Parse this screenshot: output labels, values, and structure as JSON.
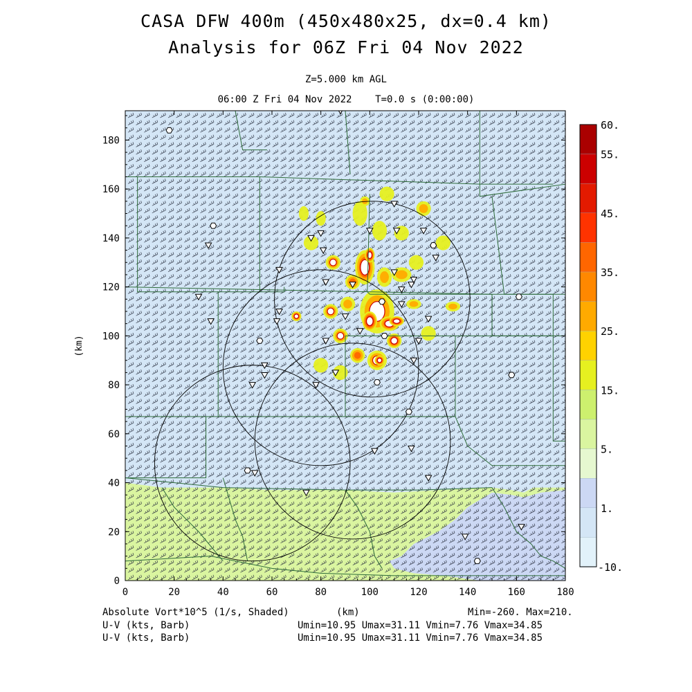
{
  "header": {
    "title_line1": "CASA DFW 400m (450x480x25, dx=0.4 km)",
    "title_line2": "Analysis for 06Z Fri 04 Nov 2022",
    "level": "Z=5.000 km AGL",
    "time": "06:00 Z Fri 04 Nov 2022    T=0.0 s (0:00:00)"
  },
  "footer": {
    "field": "Absolute Vort*10^5 (1/s, Shaded)",
    "unit": "(km)",
    "minmax": "Min=-260. Max=210.",
    "wind1": "U-V (kts, Barb)",
    "wind2": "U-V (kts, Barb)",
    "wind_stats1": "Umin=10.95 Umax=31.11 Vmin=7.76 Vmax=34.85",
    "wind_stats2": "Umin=10.95 Umax=31.11 Vmin=7.76 Vmax=34.85"
  },
  "chart_data": {
    "type": "heatmap",
    "xlabel": "",
    "ylabel": "(km)",
    "xlim": [
      0,
      180
    ],
    "ylim": [
      0,
      192
    ],
    "x_ticks": [
      0,
      20,
      40,
      60,
      80,
      100,
      120,
      140,
      160,
      180
    ],
    "y_ticks": [
      0,
      20,
      40,
      60,
      80,
      100,
      120,
      140,
      160,
      180
    ],
    "colorbar": {
      "labels": [
        "60.",
        "55.",
        "45.",
        "35.",
        "25.",
        "15.",
        "5.",
        "1.",
        "-10."
      ],
      "bins": [
        {
          "lo": 55,
          "hi": 60,
          "color": "#aa0000"
        },
        {
          "lo": 50,
          "hi": 55,
          "color": "#cc0000"
        },
        {
          "lo": 45,
          "hi": 50,
          "color": "#e31a00"
        },
        {
          "lo": 40,
          "hi": 45,
          "color": "#ff3300"
        },
        {
          "lo": 35,
          "hi": 40,
          "color": "#ff6600"
        },
        {
          "lo": 30,
          "hi": 35,
          "color": "#ff8800"
        },
        {
          "lo": 25,
          "hi": 30,
          "color": "#ffaa00"
        },
        {
          "lo": 20,
          "hi": 25,
          "color": "#ffd200"
        },
        {
          "lo": 15,
          "hi": 20,
          "color": "#e6f020"
        },
        {
          "lo": 10,
          "hi": 15,
          "color": "#cdf06e"
        },
        {
          "lo": 5,
          "hi": 10,
          "color": "#daf5a0"
        },
        {
          "lo": 1,
          "hi": 5,
          "color": "#e6f8d0"
        },
        {
          "lo": -5,
          "hi": 1,
          "color": "#ccd8f4"
        },
        {
          "lo": -8,
          "hi": -5,
          "color": "#d4e6f6"
        },
        {
          "lo": -10,
          "hi": -8,
          "color": "#e2f2fa"
        }
      ]
    },
    "background_color": "#d4e6f6",
    "regions": [
      {
        "name": "south-green-band",
        "color": "#daf5a0",
        "points": [
          [
            0,
            0
          ],
          [
            0,
            40
          ],
          [
            15,
            38
          ],
          [
            40,
            38
          ],
          [
            60,
            37
          ],
          [
            90,
            37
          ],
          [
            110,
            36
          ],
          [
            128,
            37
          ],
          [
            150,
            38
          ],
          [
            158,
            37
          ],
          [
            163,
            36
          ],
          [
            167,
            38
          ],
          [
            180,
            38
          ],
          [
            180,
            0
          ]
        ]
      },
      {
        "name": "southeast-blue-patch",
        "color": "#ccd8f4",
        "points": [
          [
            108,
            8
          ],
          [
            113,
            10
          ],
          [
            118,
            15
          ],
          [
            128,
            20
          ],
          [
            135,
            25
          ],
          [
            140,
            30
          ],
          [
            150,
            36
          ],
          [
            158,
            35
          ],
          [
            163,
            34
          ],
          [
            170,
            36
          ],
          [
            180,
            37
          ],
          [
            180,
            0
          ],
          [
            145,
            0
          ],
          [
            130,
            2
          ],
          [
            118,
            3
          ],
          [
            110,
            5
          ]
        ]
      }
    ],
    "vorticity_cells": [
      {
        "x": 103,
        "y": 110,
        "rx": 7,
        "ry": 9,
        "level": 40
      },
      {
        "x": 100,
        "y": 106,
        "rx": 3,
        "ry": 4,
        "level": 55
      },
      {
        "x": 98,
        "y": 128,
        "rx": 4,
        "ry": 7,
        "level": 45
      },
      {
        "x": 100,
        "y": 133,
        "rx": 2,
        "ry": 3,
        "level": 55
      },
      {
        "x": 108,
        "y": 105,
        "rx": 4,
        "ry": 3,
        "level": 45
      },
      {
        "x": 111,
        "y": 106,
        "rx": 3,
        "ry": 2,
        "level": 55
      },
      {
        "x": 110,
        "y": 98,
        "rx": 3,
        "ry": 3,
        "level": 45
      },
      {
        "x": 103,
        "y": 90,
        "rx": 4,
        "ry": 4,
        "level": 40
      },
      {
        "x": 104,
        "y": 90,
        "rx": 2,
        "ry": 2,
        "level": 55
      },
      {
        "x": 95,
        "y": 92,
        "rx": 3,
        "ry": 3,
        "level": 35
      },
      {
        "x": 88,
        "y": 100,
        "rx": 3,
        "ry": 3,
        "level": 40
      },
      {
        "x": 84,
        "y": 110,
        "rx": 3,
        "ry": 3,
        "level": 40
      },
      {
        "x": 70,
        "y": 108,
        "rx": 2,
        "ry": 2,
        "level": 45
      },
      {
        "x": 85,
        "y": 130,
        "rx": 3,
        "ry": 3,
        "level": 40
      },
      {
        "x": 93,
        "y": 122,
        "rx": 3,
        "ry": 3,
        "level": 35
      },
      {
        "x": 106,
        "y": 124,
        "rx": 3,
        "ry": 4,
        "level": 30
      },
      {
        "x": 113,
        "y": 125,
        "rx": 4,
        "ry": 3,
        "level": 30
      },
      {
        "x": 118,
        "y": 113,
        "rx": 3,
        "ry": 2,
        "level": 30
      },
      {
        "x": 91,
        "y": 113,
        "rx": 3,
        "ry": 3,
        "level": 25
      },
      {
        "x": 80,
        "y": 88,
        "rx": 3,
        "ry": 3,
        "level": 20
      },
      {
        "x": 96,
        "y": 150,
        "rx": 3,
        "ry": 5,
        "level": 20
      },
      {
        "x": 104,
        "y": 143,
        "rx": 3,
        "ry": 4,
        "level": 20
      },
      {
        "x": 122,
        "y": 152,
        "rx": 3,
        "ry": 3,
        "level": 25
      },
      {
        "x": 130,
        "y": 138,
        "rx": 3,
        "ry": 3,
        "level": 20
      },
      {
        "x": 134,
        "y": 112,
        "rx": 3,
        "ry": 2,
        "level": 25
      },
      {
        "x": 76,
        "y": 138,
        "rx": 3,
        "ry": 3,
        "level": 20
      },
      {
        "x": 73,
        "y": 150,
        "rx": 2,
        "ry": 3,
        "level": 15
      },
      {
        "x": 80,
        "y": 148,
        "rx": 2,
        "ry": 3,
        "level": 15
      },
      {
        "x": 113,
        "y": 142,
        "rx": 3,
        "ry": 3,
        "level": 15
      },
      {
        "x": 119,
        "y": 130,
        "rx": 3,
        "ry": 3,
        "level": 15
      },
      {
        "x": 124,
        "y": 101,
        "rx": 3,
        "ry": 3,
        "level": 15
      },
      {
        "x": 88,
        "y": 85,
        "rx": 3,
        "ry": 3,
        "level": 15
      },
      {
        "x": 98,
        "y": 155,
        "rx": 2,
        "ry": 2,
        "level": 25
      },
      {
        "x": 107,
        "y": 158,
        "rx": 3,
        "ry": 3,
        "level": 15
      }
    ],
    "range_rings": [
      {
        "cx": 101,
        "cy": 115,
        "r": 40
      },
      {
        "cx": 80,
        "cy": 87,
        "r": 40
      },
      {
        "cx": 52,
        "cy": 48,
        "r": 40
      },
      {
        "cx": 93,
        "cy": 57,
        "r": 40
      }
    ],
    "county_lines": [
      [
        [
          0,
          165
        ],
        [
          55,
          165
        ],
        [
          55,
          118
        ]
      ],
      [
        [
          5,
          165
        ],
        [
          5,
          118
        ],
        [
          55,
          118
        ],
        [
          65,
          118
        ],
        [
          65,
          120
        ]
      ],
      [
        [
          0,
          120
        ],
        [
          150,
          117
        ],
        [
          180,
          117
        ]
      ],
      [
        [
          55,
          165
        ],
        [
          145,
          162
        ],
        [
          175,
          162
        ]
      ],
      [
        [
          145,
          192
        ],
        [
          145,
          157
        ],
        [
          180,
          162
        ]
      ],
      [
        [
          150,
          157
        ],
        [
          155,
          117
        ],
        [
          175,
          117
        ],
        [
          175,
          100
        ]
      ],
      [
        [
          100,
          158
        ],
        [
          99,
          118
        ],
        [
          100,
          117
        ]
      ],
      [
        [
          100,
          117
        ],
        [
          150,
          117
        ],
        [
          150,
          100
        ],
        [
          180,
          100
        ]
      ],
      [
        [
          38,
          118
        ],
        [
          38,
          67
        ],
        [
          90,
          67
        ],
        [
          90,
          100
        ]
      ],
      [
        [
          0,
          67
        ],
        [
          38,
          67
        ]
      ],
      [
        [
          90,
          100
        ],
        [
          135,
          100
        ],
        [
          135,
          67
        ],
        [
          90,
          67
        ]
      ],
      [
        [
          135,
          100
        ],
        [
          175,
          100
        ],
        [
          175,
          57
        ],
        [
          180,
          57
        ]
      ],
      [
        [
          135,
          67
        ],
        [
          140,
          55
        ],
        [
          150,
          47
        ],
        [
          175,
          47
        ],
        [
          180,
          47
        ]
      ],
      [
        [
          33,
          67
        ],
        [
          33,
          42
        ],
        [
          0,
          42
        ]
      ],
      [
        [
          0,
          42
        ],
        [
          40,
          38
        ],
        [
          90,
          37
        ],
        [
          120,
          37
        ],
        [
          150,
          38
        ]
      ],
      [
        [
          15,
          38
        ],
        [
          20,
          30
        ],
        [
          30,
          20
        ],
        [
          40,
          8
        ]
      ],
      [
        [
          40,
          42
        ],
        [
          45,
          25
        ],
        [
          48,
          18
        ],
        [
          50,
          8
        ]
      ],
      [
        [
          90,
          37
        ],
        [
          95,
          30
        ],
        [
          100,
          20
        ],
        [
          102,
          10
        ],
        [
          105,
          5
        ]
      ],
      [
        [
          150,
          38
        ],
        [
          155,
          30
        ],
        [
          160,
          20
        ],
        [
          166,
          15
        ],
        [
          170,
          10
        ],
        [
          175,
          8
        ],
        [
          180,
          5
        ]
      ],
      [
        [
          45,
          192
        ],
        [
          48,
          176
        ],
        [
          58,
          176
        ]
      ],
      [
        [
          90,
          192
        ],
        [
          92,
          166
        ]
      ],
      [
        [
          0,
          8
        ],
        [
          35,
          10
        ],
        [
          60,
          5
        ],
        [
          80,
          3
        ],
        [
          110,
          2
        ],
        [
          130,
          2
        ],
        [
          180,
          2
        ]
      ]
    ],
    "radar_markers": [
      {
        "type": "hex",
        "x": 18,
        "y": 184
      },
      {
        "type": "hex",
        "x": 36,
        "y": 145
      },
      {
        "type": "hex",
        "x": 55,
        "y": 98
      },
      {
        "type": "hex",
        "x": 126,
        "y": 137
      },
      {
        "type": "hex",
        "x": 161,
        "y": 116
      },
      {
        "type": "hex",
        "x": 158,
        "y": 84
      },
      {
        "type": "hex",
        "x": 144,
        "y": 8
      },
      {
        "type": "hex",
        "x": 50,
        "y": 45
      },
      {
        "type": "hex",
        "x": 103,
        "y": 81
      },
      {
        "type": "hex",
        "x": 116,
        "y": 69
      },
      {
        "type": "hex",
        "x": 106,
        "y": 100
      },
      {
        "type": "hex",
        "x": 105,
        "y": 114
      },
      {
        "type": "tri",
        "x": 88,
        "y": 192
      },
      {
        "type": "tri",
        "x": 110,
        "y": 154
      },
      {
        "type": "tri",
        "x": 34,
        "y": 137
      },
      {
        "type": "tri",
        "x": 80,
        "y": 142
      },
      {
        "type": "tri",
        "x": 76,
        "y": 140
      },
      {
        "type": "tri",
        "x": 81,
        "y": 135
      },
      {
        "type": "tri",
        "x": 100,
        "y": 143
      },
      {
        "type": "tri",
        "x": 111,
        "y": 143
      },
      {
        "type": "tri",
        "x": 122,
        "y": 143
      },
      {
        "type": "tri",
        "x": 127,
        "y": 132
      },
      {
        "type": "tri",
        "x": 63,
        "y": 127
      },
      {
        "type": "tri",
        "x": 82,
        "y": 122
      },
      {
        "type": "tri",
        "x": 93,
        "y": 121
      },
      {
        "type": "tri",
        "x": 113,
        "y": 119
      },
      {
        "type": "tri",
        "x": 117,
        "y": 121
      },
      {
        "type": "tri",
        "x": 30,
        "y": 116
      },
      {
        "type": "tri",
        "x": 63,
        "y": 110
      },
      {
        "type": "tri",
        "x": 62,
        "y": 106
      },
      {
        "type": "tri",
        "x": 113,
        "y": 113
      },
      {
        "type": "tri",
        "x": 124,
        "y": 107
      },
      {
        "type": "tri",
        "x": 120,
        "y": 98
      },
      {
        "type": "tri",
        "x": 118,
        "y": 90
      },
      {
        "type": "tri",
        "x": 82,
        "y": 98
      },
      {
        "type": "tri",
        "x": 86,
        "y": 85
      },
      {
        "type": "tri",
        "x": 57,
        "y": 88
      },
      {
        "type": "tri",
        "x": 57,
        "y": 84
      },
      {
        "type": "tri",
        "x": 52,
        "y": 80
      },
      {
        "type": "tri",
        "x": 78,
        "y": 80
      },
      {
        "type": "tri",
        "x": 117,
        "y": 54
      },
      {
        "type": "tri",
        "x": 102,
        "y": 53
      },
      {
        "type": "tri",
        "x": 53,
        "y": 44
      },
      {
        "type": "tri",
        "x": 74,
        "y": 36
      },
      {
        "type": "tri",
        "x": 139,
        "y": 18
      },
      {
        "type": "tri",
        "x": 162,
        "y": 22
      },
      {
        "type": "tri",
        "x": 124,
        "y": 42
      },
      {
        "type": "tri",
        "x": 35,
        "y": 106
      },
      {
        "type": "tri",
        "x": 90,
        "y": 108
      },
      {
        "type": "tri",
        "x": 96,
        "y": 102
      },
      {
        "type": "tri",
        "x": 110,
        "y": 126
      },
      {
        "type": "tri",
        "x": 118,
        "y": 123
      }
    ],
    "grid": false,
    "legend": "right"
  }
}
